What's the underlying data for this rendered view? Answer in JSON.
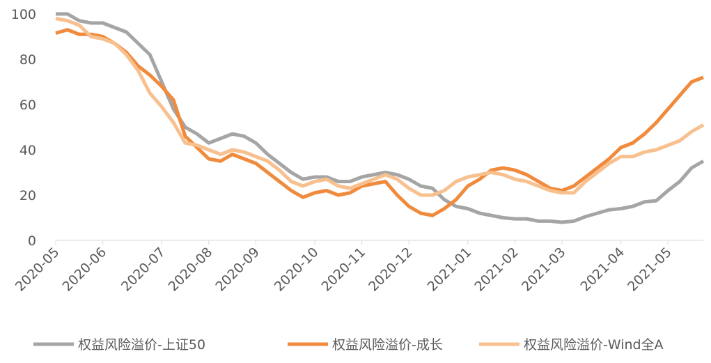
{
  "chart_data": {
    "type": "line",
    "categories": [
      "2020-05",
      null,
      null,
      null,
      "2020-06",
      null,
      null,
      null,
      null,
      "2020-07",
      null,
      null,
      null,
      "2020-08",
      null,
      null,
      null,
      "2020-09",
      null,
      null,
      null,
      null,
      "2020-10",
      null,
      null,
      null,
      "2020-11",
      null,
      null,
      null,
      "2020-12",
      null,
      null,
      null,
      null,
      "2021-01",
      null,
      null,
      null,
      "2021-02",
      null,
      null,
      null,
      "2021-03",
      null,
      null,
      null,
      null,
      "2021-04",
      null,
      null,
      null,
      "2021-05",
      null,
      null,
      null
    ],
    "series": [
      {
        "name": "权益风险溢价-上证50",
        "color": "#a5a5a5",
        "values": [
          100,
          100,
          97,
          96,
          96,
          94,
          92,
          87,
          82,
          70,
          58,
          50,
          47,
          43,
          45,
          47,
          46,
          43,
          38,
          34,
          30,
          27,
          28,
          28,
          26,
          26,
          28,
          29,
          30,
          29,
          27,
          24,
          23,
          18,
          15,
          14,
          12,
          11,
          10,
          9.5,
          9.5,
          8.5,
          8.5,
          8,
          8.5,
          10.5,
          12,
          13.5,
          14,
          15,
          17,
          17.5,
          22,
          26,
          32,
          35
        ]
      },
      {
        "name": "权益风险溢价-成长",
        "color": "#f08a3c",
        "values": [
          91.5,
          93,
          91,
          91,
          90,
          87,
          83,
          77,
          73,
          68,
          62,
          46,
          41,
          36,
          35,
          38,
          36,
          34,
          30,
          26,
          22,
          19,
          21,
          22,
          20,
          21,
          24,
          25,
          26,
          20,
          15,
          12,
          11,
          14,
          18,
          24,
          27,
          31,
          32,
          31,
          29,
          26,
          23,
          22,
          24,
          28,
          32,
          36,
          41,
          43,
          47,
          52,
          58,
          64,
          70,
          72
        ]
      },
      {
        "name": "权益风险溢价-Wind全A",
        "color": "#f8c08f",
        "values": [
          98,
          97,
          95,
          90,
          89,
          87,
          82,
          75,
          65,
          59,
          52,
          43,
          42,
          40,
          38,
          40,
          39,
          37,
          35,
          31,
          26,
          24,
          26,
          27,
          24,
          23,
          25,
          27,
          29,
          27,
          23,
          20,
          20,
          22,
          26,
          28,
          29,
          30,
          29,
          27,
          26,
          24,
          22,
          21,
          21,
          26,
          30,
          34,
          37,
          37,
          39,
          40,
          42,
          44,
          48,
          51
        ]
      }
    ],
    "ylim": [
      0,
      100
    ],
    "yticks": [
      0,
      20,
      40,
      60,
      80,
      100
    ],
    "legend": "bottom"
  }
}
